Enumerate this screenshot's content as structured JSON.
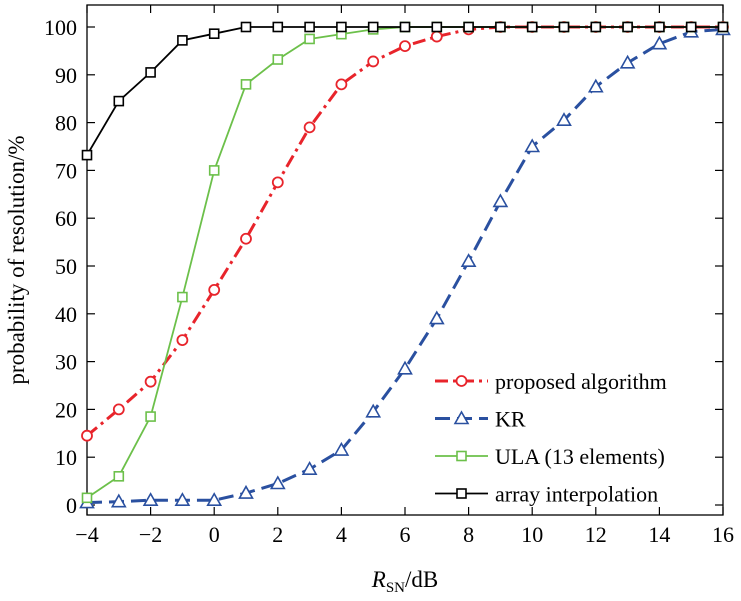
{
  "chart_data": {
    "type": "line",
    "title": "",
    "xlabel_main": "R",
    "xlabel_sub": "SN",
    "xlabel_unit": "/dB",
    "ylabel": "probability of resolution/%",
    "xlim": [
      -4,
      16
    ],
    "ylim": [
      0,
      100
    ],
    "xticks": [
      "−4",
      "−2",
      "0",
      "2",
      "4",
      "6",
      "8",
      "10",
      "12",
      "14",
      "16"
    ],
    "yticks": [
      "0",
      "10",
      "20",
      "30",
      "40",
      "50",
      "60",
      "70",
      "80",
      "90",
      "100"
    ],
    "grid": false,
    "legend_position": "bottom-right",
    "x": [
      -4,
      -3,
      -2,
      -1,
      0,
      1,
      2,
      3,
      4,
      5,
      6,
      7,
      8,
      9,
      10,
      11,
      12,
      13,
      14,
      15,
      16
    ],
    "series": [
      {
        "name": "proposed algorithm",
        "color": "#e8242b",
        "marker": "circle",
        "dash": "dash-dot",
        "values": [
          14.5,
          20,
          25.8,
          34.5,
          45,
          55.7,
          67.5,
          79,
          88,
          92.8,
          96,
          98,
          99.5,
          100,
          100,
          100,
          100,
          100,
          100,
          100,
          100
        ]
      },
      {
        "name": "KR",
        "color": "#2a50a0",
        "marker": "triangle",
        "dash": "dashed",
        "values": [
          0.5,
          0.7,
          1,
          1,
          1,
          2.5,
          4.5,
          7.5,
          11.5,
          19.5,
          28.5,
          39,
          51,
          63.5,
          75,
          80.5,
          87.5,
          92.5,
          96.5,
          99,
          99.5
        ]
      },
      {
        "name": "ULA (13 elements)",
        "color": "#6cc04a",
        "marker": "square",
        "dash": "solid",
        "values": [
          1.5,
          6,
          18.5,
          43.5,
          70,
          88,
          93.2,
          97.5,
          98.5,
          99.5,
          100,
          100,
          100,
          100,
          100,
          100,
          100,
          100,
          100,
          100,
          100
        ]
      },
      {
        "name": "array interpolation",
        "color": "#000000",
        "marker": "square",
        "dash": "solid",
        "values": [
          73.2,
          84.5,
          90.5,
          97.2,
          98.6,
          100,
          100,
          100,
          100,
          100,
          100,
          100,
          100,
          100,
          100,
          100,
          100,
          100,
          100,
          100,
          100
        ]
      }
    ]
  }
}
